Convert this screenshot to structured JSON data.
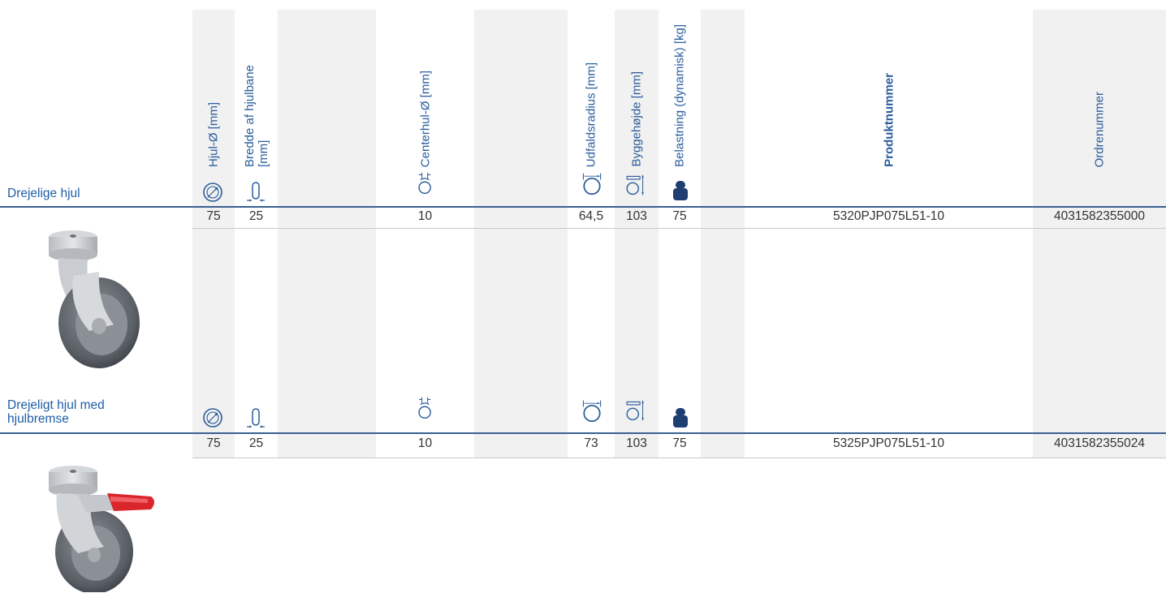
{
  "columns": {
    "wheel_diameter": "Hjul-Ø [mm]",
    "tread_width": "Bredde af hjulbane [mm]",
    "center_hole": "Centerhul-Ø [mm]",
    "swivel_radius": "Udfaldsradius [mm]",
    "build_height": "Byggehøjde [mm]",
    "load": "Belastning (dynamisk) [kg]",
    "product_number": "Produktnummer",
    "order_number": "Ordrenummer"
  },
  "sections": [
    {
      "label": "Drejelige hjul",
      "row": {
        "wheel_diameter": "75",
        "tread_width": "25",
        "center_hole": "10",
        "swivel_radius": "64,5",
        "build_height": "103",
        "load": "75",
        "product_number": "5320PJP075L51-10",
        "order_number": "4031582355000"
      }
    },
    {
      "label": "Drejeligt hjul med hjulbremse",
      "row": {
        "wheel_diameter": "75",
        "tread_width": "25",
        "center_hole": "10",
        "swivel_radius": "73",
        "build_height": "103",
        "load": "75",
        "product_number": "5325PJP075L51-10",
        "order_number": "4031582355024"
      }
    }
  ],
  "icons": [
    "wheel-diameter-icon",
    "tread-width-icon",
    "center-hole-icon",
    "swivel-radius-icon",
    "build-height-icon",
    "load-weight-icon"
  ],
  "colors": {
    "accent": "#2a5d9c",
    "band": "#f1f1f1",
    "rule": "#3a5f8f",
    "brake": "#d9262b"
  }
}
